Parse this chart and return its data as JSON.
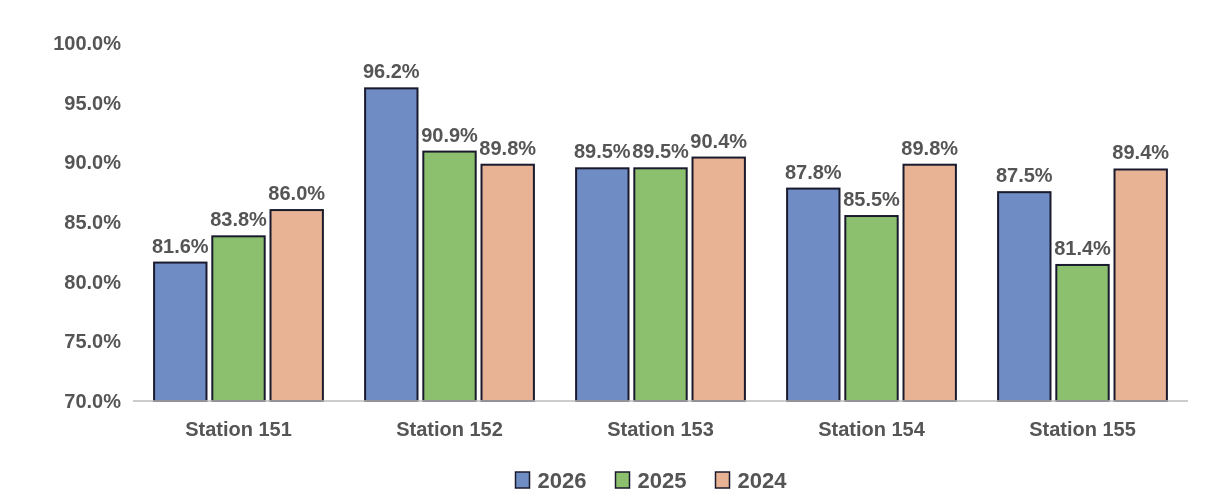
{
  "chart_data": {
    "type": "bar",
    "categories": [
      "Station 151",
      "Station 152",
      "Station 153",
      "Station 154",
      "Station 155"
    ],
    "series": [
      {
        "name": "2026",
        "color": "#6f8cc4",
        "values": [
          81.6,
          96.2,
          89.5,
          87.8,
          87.5
        ],
        "value_labels": [
          "81.6%",
          "96.2%",
          "89.5%",
          "87.8%",
          "87.5%"
        ]
      },
      {
        "name": "2025",
        "color": "#8cc06e",
        "values": [
          83.8,
          90.9,
          89.5,
          85.5,
          81.4
        ],
        "value_labels": [
          "83.8%",
          "90.9%",
          "89.5%",
          "85.5%",
          "81.4%"
        ]
      },
      {
        "name": "2024",
        "color": "#e8b394",
        "values": [
          86.0,
          89.8,
          90.4,
          89.8,
          89.4
        ],
        "value_labels": [
          "86.0%",
          "89.8%",
          "90.4%",
          "89.8%",
          "89.4%"
        ]
      }
    ],
    "ylim": [
      70,
      100
    ],
    "yticks": [
      {
        "value": 70,
        "label": "70.0%"
      },
      {
        "value": 75,
        "label": "75.0%"
      },
      {
        "value": 80,
        "label": "80.0%"
      },
      {
        "value": 85,
        "label": "85.0%"
      },
      {
        "value": 90,
        "label": "90.0%"
      },
      {
        "value": 95,
        "label": "95.0%"
      },
      {
        "value": 100,
        "label": "100.0%"
      }
    ],
    "grid": false,
    "legend": "bottom"
  }
}
